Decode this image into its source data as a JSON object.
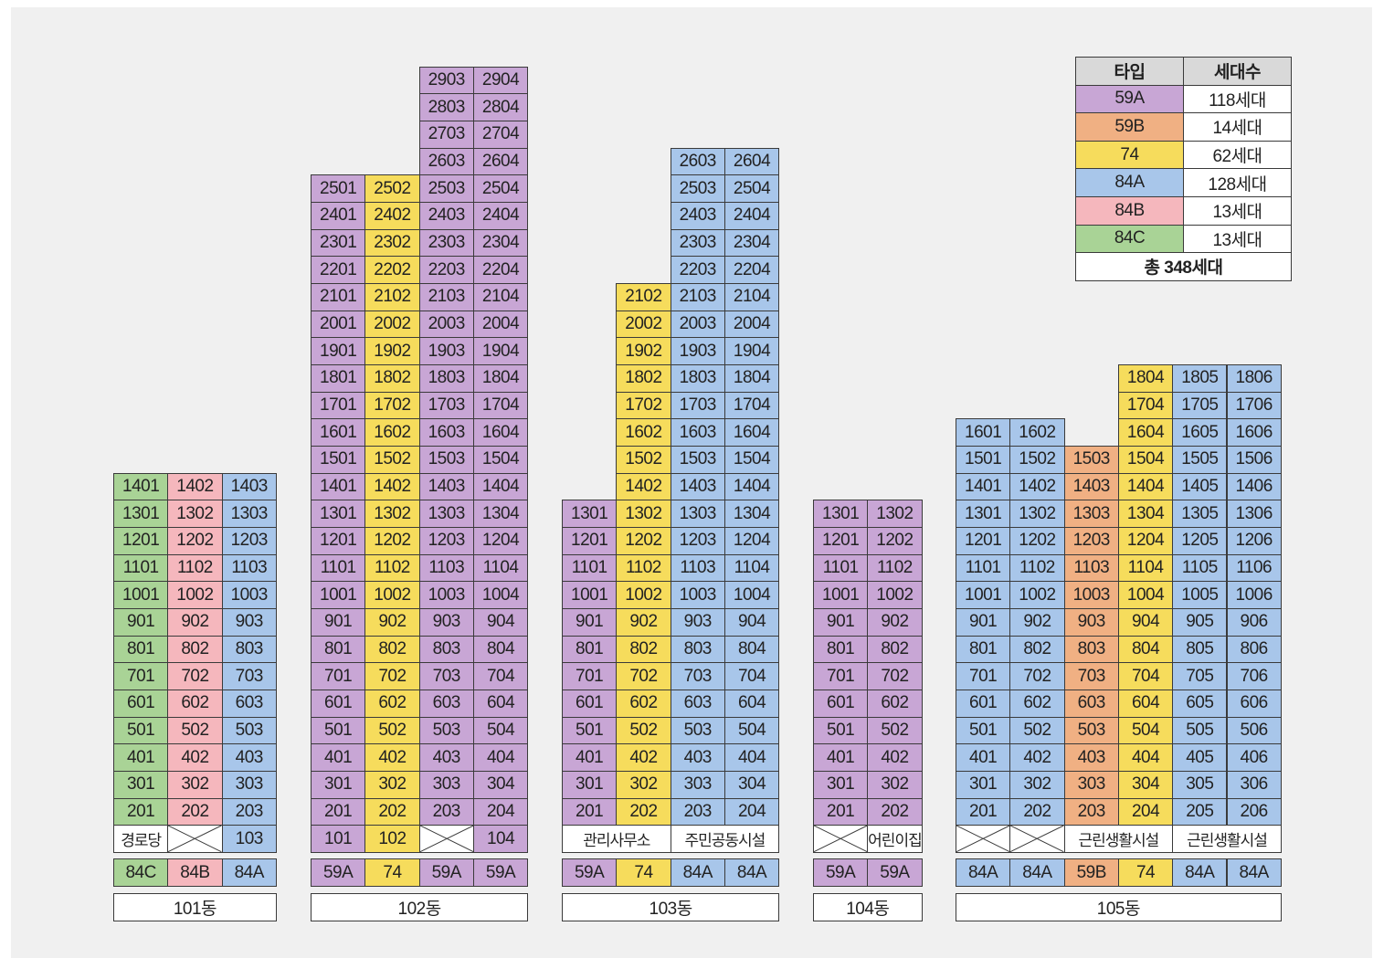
{
  "colors": {
    "59A": "#c8a6d5",
    "59B": "#f0b083",
    "74": "#f6dc5c",
    "84A": "#a8c6ea",
    "84B": "#f5b7bd",
    "84C": "#a9d396",
    "facility": "#ffffff"
  },
  "legend": {
    "headers": [
      "타입",
      "세대수"
    ],
    "rows": [
      {
        "type": "59A",
        "count": "118세대"
      },
      {
        "type": "59B",
        "count": "14세대"
      },
      {
        "type": "74",
        "count": "62세대"
      },
      {
        "type": "84A",
        "count": "128세대"
      },
      {
        "type": "84B",
        "count": "13세대"
      },
      {
        "type": "84C",
        "count": "13세대"
      }
    ],
    "total": "총 348세대"
  },
  "buildings": [
    {
      "name": "101동",
      "columns": [
        {
          "type": "84C",
          "lines": "01",
          "top_floor": 14,
          "ground": {
            "kind": "text",
            "label": "경로당"
          }
        },
        {
          "type": "84B",
          "lines": "02",
          "top_floor": 14,
          "ground": {
            "kind": "empty"
          }
        },
        {
          "type": "84A",
          "lines": "03",
          "top_floor": 14,
          "ground": {
            "kind": "unit",
            "label": "103"
          }
        }
      ]
    },
    {
      "name": "102동",
      "columns": [
        {
          "type": "59A",
          "lines": "01",
          "top_floor": 25,
          "ground": {
            "kind": "unit",
            "label": "101"
          }
        },
        {
          "type": "74",
          "lines": "02",
          "top_floor": 25,
          "ground": {
            "kind": "unit",
            "label": "102"
          }
        },
        {
          "type": "59A",
          "lines": "03",
          "top_floor": 29,
          "ground": {
            "kind": "empty"
          }
        },
        {
          "type": "59A",
          "lines": "04",
          "top_floor": 29,
          "ground": {
            "kind": "unit",
            "label": "104"
          }
        }
      ]
    },
    {
      "name": "103동",
      "columns": [
        {
          "type": "59A",
          "lines": "01",
          "top_floor": 13,
          "ground": {
            "kind": "merged",
            "label": "관리사무소",
            "span": 2
          }
        },
        {
          "type": "74",
          "lines": "02",
          "top_floor": 21,
          "ground": null
        },
        {
          "type": "84A",
          "lines": "03",
          "top_floor": 26,
          "ground": {
            "kind": "merged",
            "label": "주민공동시설",
            "span": 2
          }
        },
        {
          "type": "84A",
          "lines": "04",
          "top_floor": 26,
          "ground": null
        }
      ]
    },
    {
      "name": "104동",
      "columns": [
        {
          "type": "59A",
          "lines": "01",
          "top_floor": 13,
          "ground": {
            "kind": "empty"
          }
        },
        {
          "type": "59A",
          "lines": "02",
          "top_floor": 13,
          "ground": {
            "kind": "text",
            "label": "어린이집"
          }
        }
      ]
    },
    {
      "name": "105동",
      "columns": [
        {
          "type": "84A",
          "lines": "01",
          "top_floor": 16,
          "ground": {
            "kind": "empty"
          }
        },
        {
          "type": "84A",
          "lines": "02",
          "top_floor": 16,
          "ground": {
            "kind": "empty"
          }
        },
        {
          "type": "59B",
          "lines": "03",
          "top_floor": 15,
          "ground": {
            "kind": "merged",
            "label": "근린생활시설",
            "span": 2
          }
        },
        {
          "type": "74",
          "lines": "04",
          "top_floor": 18,
          "ground": null
        },
        {
          "type": "84A",
          "lines": "05",
          "top_floor": 18,
          "ground": {
            "kind": "merged",
            "label": "근린생활시설",
            "span": 2
          }
        },
        {
          "type": "84A",
          "lines": "06",
          "top_floor": 18,
          "ground": null
        }
      ]
    }
  ]
}
